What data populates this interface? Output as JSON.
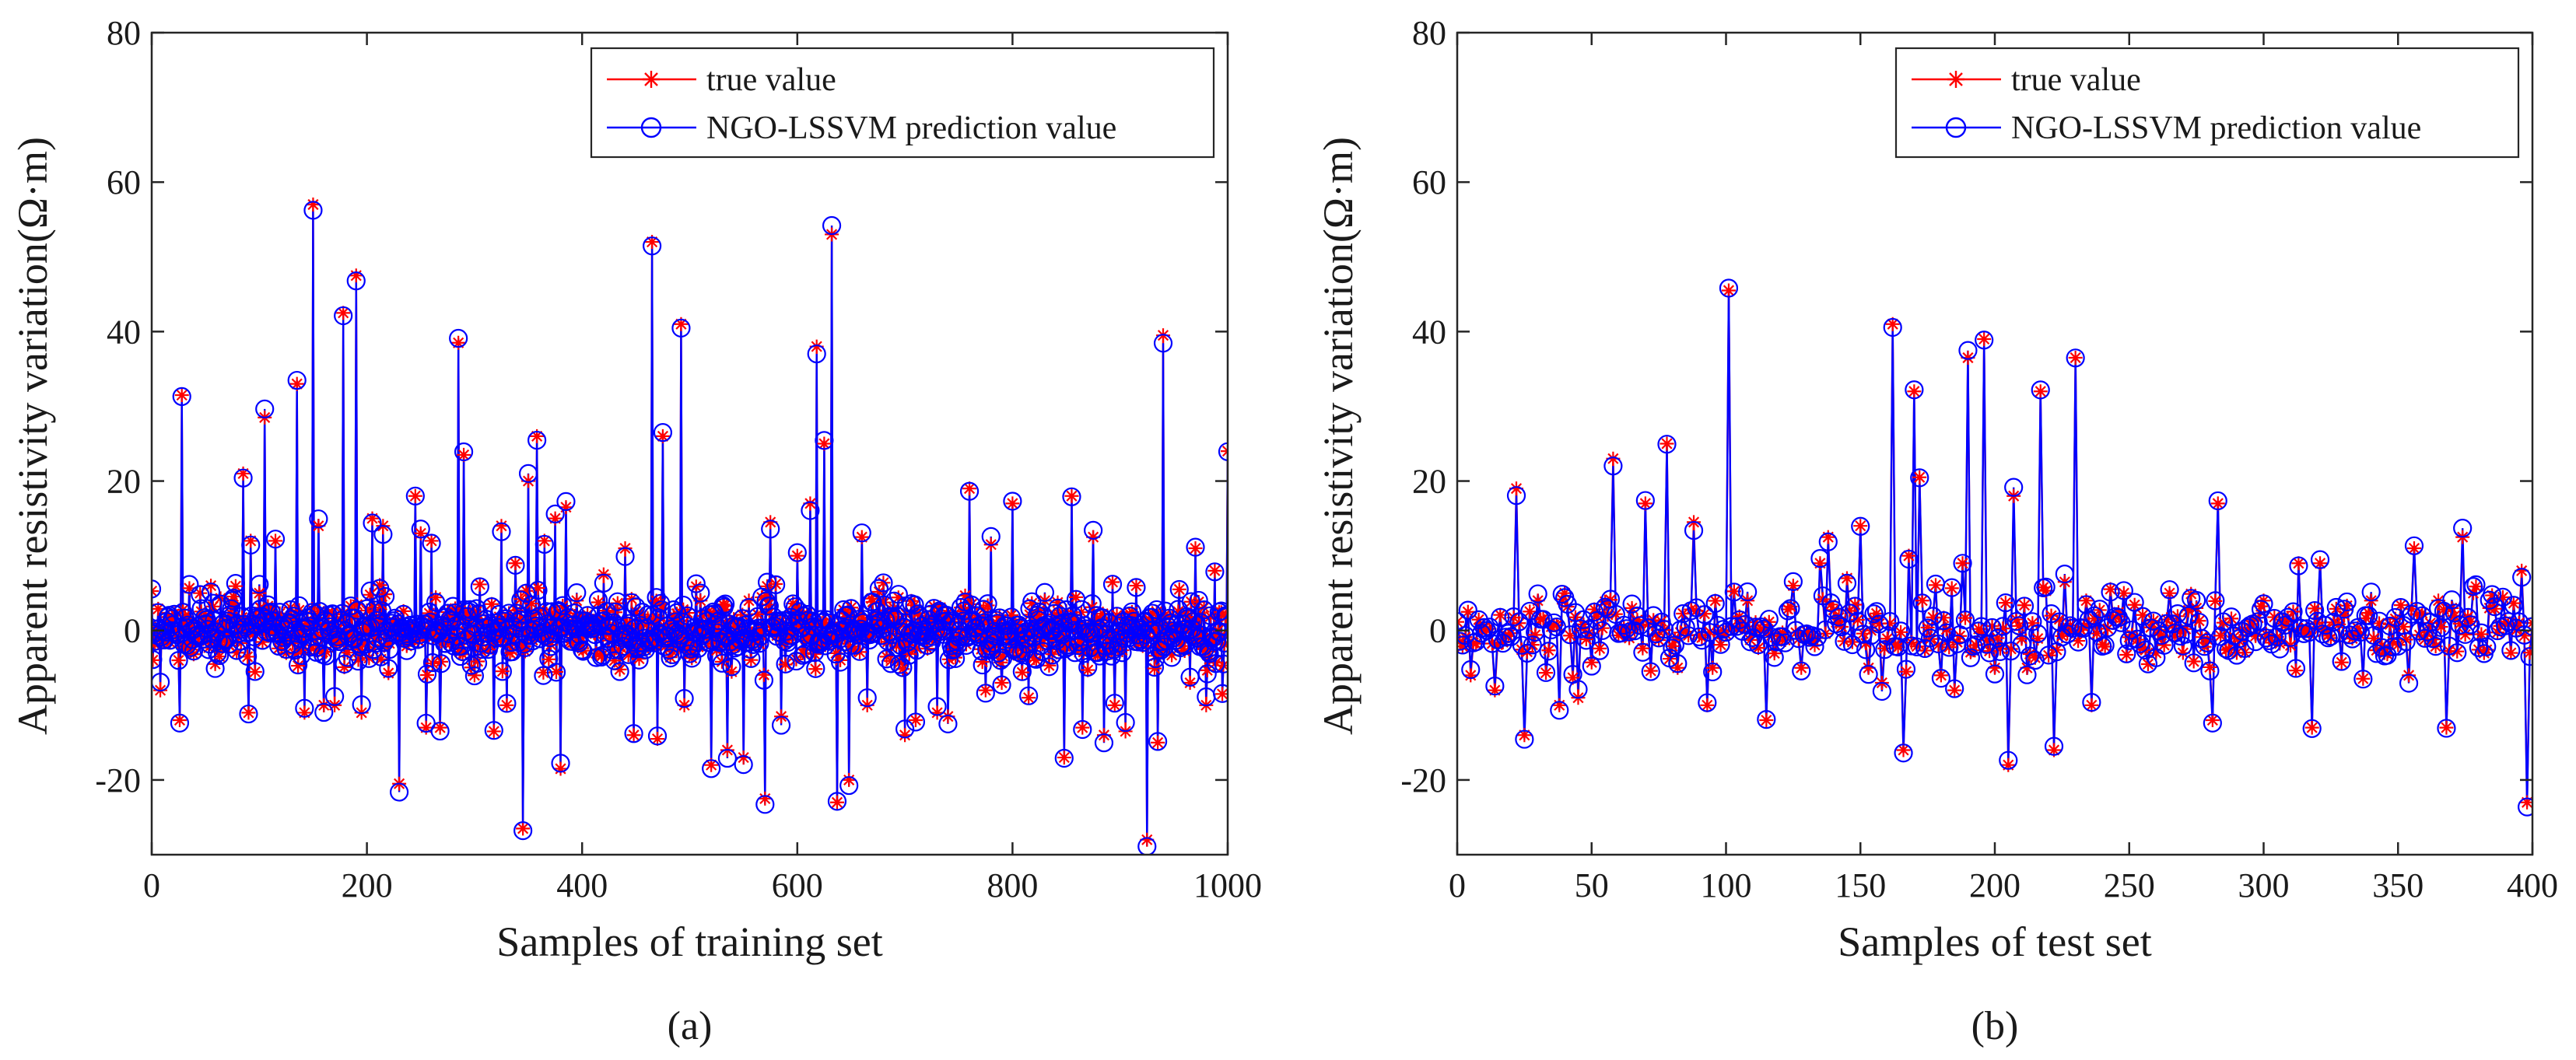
{
  "chart_data": [
    {
      "type": "line",
      "panel_label": "(a)",
      "xlabel": "Samples of training set",
      "ylabel": "Apparent resistivity variation(Ω·m)",
      "xlim": [
        0,
        1000
      ],
      "ylim": [
        -30,
        80
      ],
      "xticks": [
        0,
        200,
        400,
        600,
        800,
        1000
      ],
      "yticks": [
        -20,
        0,
        20,
        40,
        60,
        80
      ],
      "legend": {
        "position": "top-right",
        "entries": [
          "true value",
          "NGO-LSSVM prediction value"
        ]
      },
      "series": [
        {
          "name": "true value",
          "color": "#ff0000",
          "marker": "asterisk"
        },
        {
          "name": "NGO-LSSVM prediction value",
          "color": "#0000ff",
          "marker": "circle"
        }
      ],
      "n_samples": 1000,
      "spikes": [
        [
          8,
          -8
        ],
        [
          28,
          31.5
        ],
        [
          26,
          -12
        ],
        [
          45,
          5
        ],
        [
          55,
          6
        ],
        [
          85,
          21
        ],
        [
          90,
          -11
        ],
        [
          92,
          12
        ],
        [
          100,
          5
        ],
        [
          105,
          28.5
        ],
        [
          115,
          12
        ],
        [
          125,
          -3
        ],
        [
          135,
          33
        ],
        [
          142,
          -11
        ],
        [
          150,
          57
        ],
        [
          155,
          14
        ],
        [
          160,
          -10
        ],
        [
          170,
          -10
        ],
        [
          178,
          42.5
        ],
        [
          190,
          47.5
        ],
        [
          195,
          -11
        ],
        [
          205,
          15
        ],
        [
          215,
          14
        ],
        [
          230,
          -20.5
        ],
        [
          245,
          18
        ],
        [
          250,
          13
        ],
        [
          255,
          -13
        ],
        [
          260,
          12
        ],
        [
          268,
          -13
        ],
        [
          285,
          38.5
        ],
        [
          290,
          23.5
        ],
        [
          300,
          -6
        ],
        [
          318,
          -13.5
        ],
        [
          325,
          14
        ],
        [
          330,
          -10
        ],
        [
          338,
          9
        ],
        [
          345,
          -26.5
        ],
        [
          350,
          20
        ],
        [
          358,
          26
        ],
        [
          365,
          12
        ],
        [
          375,
          15
        ],
        [
          380,
          -18.5
        ],
        [
          385,
          16.5
        ],
        [
          395,
          4
        ],
        [
          420,
          7.5
        ],
        [
          440,
          11
        ],
        [
          448,
          -14
        ],
        [
          465,
          52
        ],
        [
          470,
          -14.5
        ],
        [
          475,
          26
        ],
        [
          485,
          2
        ],
        [
          492,
          41
        ],
        [
          495,
          -10
        ],
        [
          510,
          4
        ],
        [
          520,
          -18
        ],
        [
          535,
          -16
        ],
        [
          550,
          -17
        ],
        [
          555,
          4
        ],
        [
          570,
          -22.5
        ],
        [
          575,
          14.5
        ],
        [
          585,
          -11.5
        ],
        [
          600,
          10
        ],
        [
          612,
          17
        ],
        [
          618,
          38
        ],
        [
          625,
          25
        ],
        [
          632,
          53
        ],
        [
          637,
          -23
        ],
        [
          648,
          -20
        ],
        [
          660,
          12.5
        ],
        [
          665,
          -10
        ],
        [
          690,
          3
        ],
        [
          700,
          -14
        ],
        [
          710,
          -12
        ],
        [
          730,
          -11
        ],
        [
          740,
          -11.5
        ],
        [
          760,
          19
        ],
        [
          775,
          -8
        ],
        [
          780,
          11.5
        ],
        [
          790,
          -7
        ],
        [
          800,
          17
        ],
        [
          815,
          -9
        ],
        [
          830,
          4
        ],
        [
          848,
          -17
        ],
        [
          855,
          18
        ],
        [
          865,
          -13
        ],
        [
          875,
          12.5
        ],
        [
          885,
          -14
        ],
        [
          895,
          -10
        ],
        [
          905,
          -13.5
        ],
        [
          915,
          6
        ],
        [
          925,
          -28
        ],
        [
          935,
          -15
        ],
        [
          940,
          39.5
        ],
        [
          955,
          5.5
        ],
        [
          965,
          -7
        ],
        [
          970,
          11
        ],
        [
          980,
          -10
        ],
        [
          988,
          8
        ],
        [
          995,
          -8.5
        ],
        [
          1000,
          24
        ]
      ]
    },
    {
      "type": "line",
      "panel_label": "(b)",
      "xlabel": "Samples of test set",
      "ylabel": "Apparent resistivity variation(Ω·m)",
      "xlim": [
        0,
        400
      ],
      "ylim": [
        -30,
        80
      ],
      "xticks": [
        0,
        50,
        100,
        150,
        200,
        250,
        300,
        350,
        400
      ],
      "yticks": [
        -20,
        0,
        20,
        40,
        60,
        80
      ],
      "legend": {
        "position": "top-right",
        "entries": [
          "true value",
          "NGO-LSSVM prediction value"
        ]
      },
      "series": [
        {
          "name": "true value",
          "color": "#ff0000",
          "marker": "asterisk"
        },
        {
          "name": "NGO-LSSVM prediction value",
          "color": "#0000ff",
          "marker": "circle"
        }
      ],
      "n_samples": 400,
      "spikes": [
        [
          5,
          -6
        ],
        [
          14,
          -8
        ],
        [
          22,
          19
        ],
        [
          25,
          -14
        ],
        [
          30,
          4
        ],
        [
          38,
          -10
        ],
        [
          40,
          5
        ],
        [
          45,
          -9
        ],
        [
          58,
          23
        ],
        [
          65,
          3
        ],
        [
          70,
          17
        ],
        [
          78,
          25
        ],
        [
          82,
          -5
        ],
        [
          88,
          14.5
        ],
        [
          93,
          -10
        ],
        [
          95,
          -5
        ],
        [
          101,
          45.5
        ],
        [
          108,
          4
        ],
        [
          115,
          -12
        ],
        [
          125,
          6
        ],
        [
          128,
          -5
        ],
        [
          135,
          9
        ],
        [
          138,
          12.5
        ],
        [
          145,
          7
        ],
        [
          150,
          14
        ],
        [
          153,
          -5
        ],
        [
          158,
          -7
        ],
        [
          162,
          41
        ],
        [
          166,
          -16
        ],
        [
          168,
          10
        ],
        [
          170,
          32
        ],
        [
          172,
          20.5
        ],
        [
          180,
          -6
        ],
        [
          185,
          -8
        ],
        [
          188,
          9
        ],
        [
          190,
          36.5
        ],
        [
          196,
          39
        ],
        [
          200,
          -5
        ],
        [
          205,
          -18
        ],
        [
          207,
          18
        ],
        [
          212,
          -5
        ],
        [
          217,
          32
        ],
        [
          222,
          -16
        ],
        [
          226,
          6.5
        ],
        [
          230,
          36.5
        ],
        [
          234,
          4
        ],
        [
          236,
          -10
        ],
        [
          248,
          5
        ],
        [
          260,
          -3
        ],
        [
          265,
          5
        ],
        [
          270,
          -3
        ],
        [
          275,
          3
        ],
        [
          281,
          -12
        ],
        [
          283,
          17
        ],
        [
          290,
          -3
        ],
        [
          300,
          4
        ],
        [
          310,
          -2
        ],
        [
          313,
          9
        ],
        [
          318,
          -13
        ],
        [
          321,
          9
        ],
        [
          340,
          4
        ],
        [
          345,
          -3
        ],
        [
          354,
          -6
        ],
        [
          356,
          11
        ],
        [
          365,
          4
        ],
        [
          368,
          -13
        ],
        [
          370,
          3
        ],
        [
          374,
          12.5
        ],
        [
          378,
          5
        ],
        [
          384,
          3
        ],
        [
          392,
          -3
        ],
        [
          396,
          8
        ],
        [
          398,
          -23
        ],
        [
          400,
          1
        ]
      ]
    }
  ]
}
